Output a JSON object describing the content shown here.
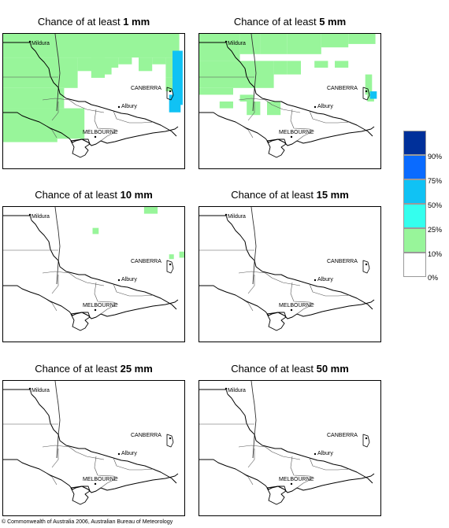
{
  "title_prefix": "Chance of at least ",
  "panels": [
    {
      "amount": "1 mm"
    },
    {
      "amount": "5 mm"
    },
    {
      "amount": "10 mm"
    },
    {
      "amount": "15 mm"
    },
    {
      "amount": "25 mm"
    },
    {
      "amount": "50 mm"
    }
  ],
  "places": [
    "Mildura",
    "CANBERRA",
    "Albury",
    "MELBOURNE"
  ],
  "legend": {
    "items": [
      {
        "label": "90%",
        "color": "#00309a"
      },
      {
        "label": "75%",
        "color": "#0a6bff"
      },
      {
        "label": "50%",
        "color": "#10c2f4"
      },
      {
        "label": "25%",
        "color": "#34ffee"
      },
      {
        "label": "10%",
        "color": "#98f59a"
      },
      {
        "label": "0%",
        "color": "#ffffff"
      }
    ]
  },
  "copyright": "© Commonwealth of Australia 2006, Australian Bureau of Meteorology"
}
